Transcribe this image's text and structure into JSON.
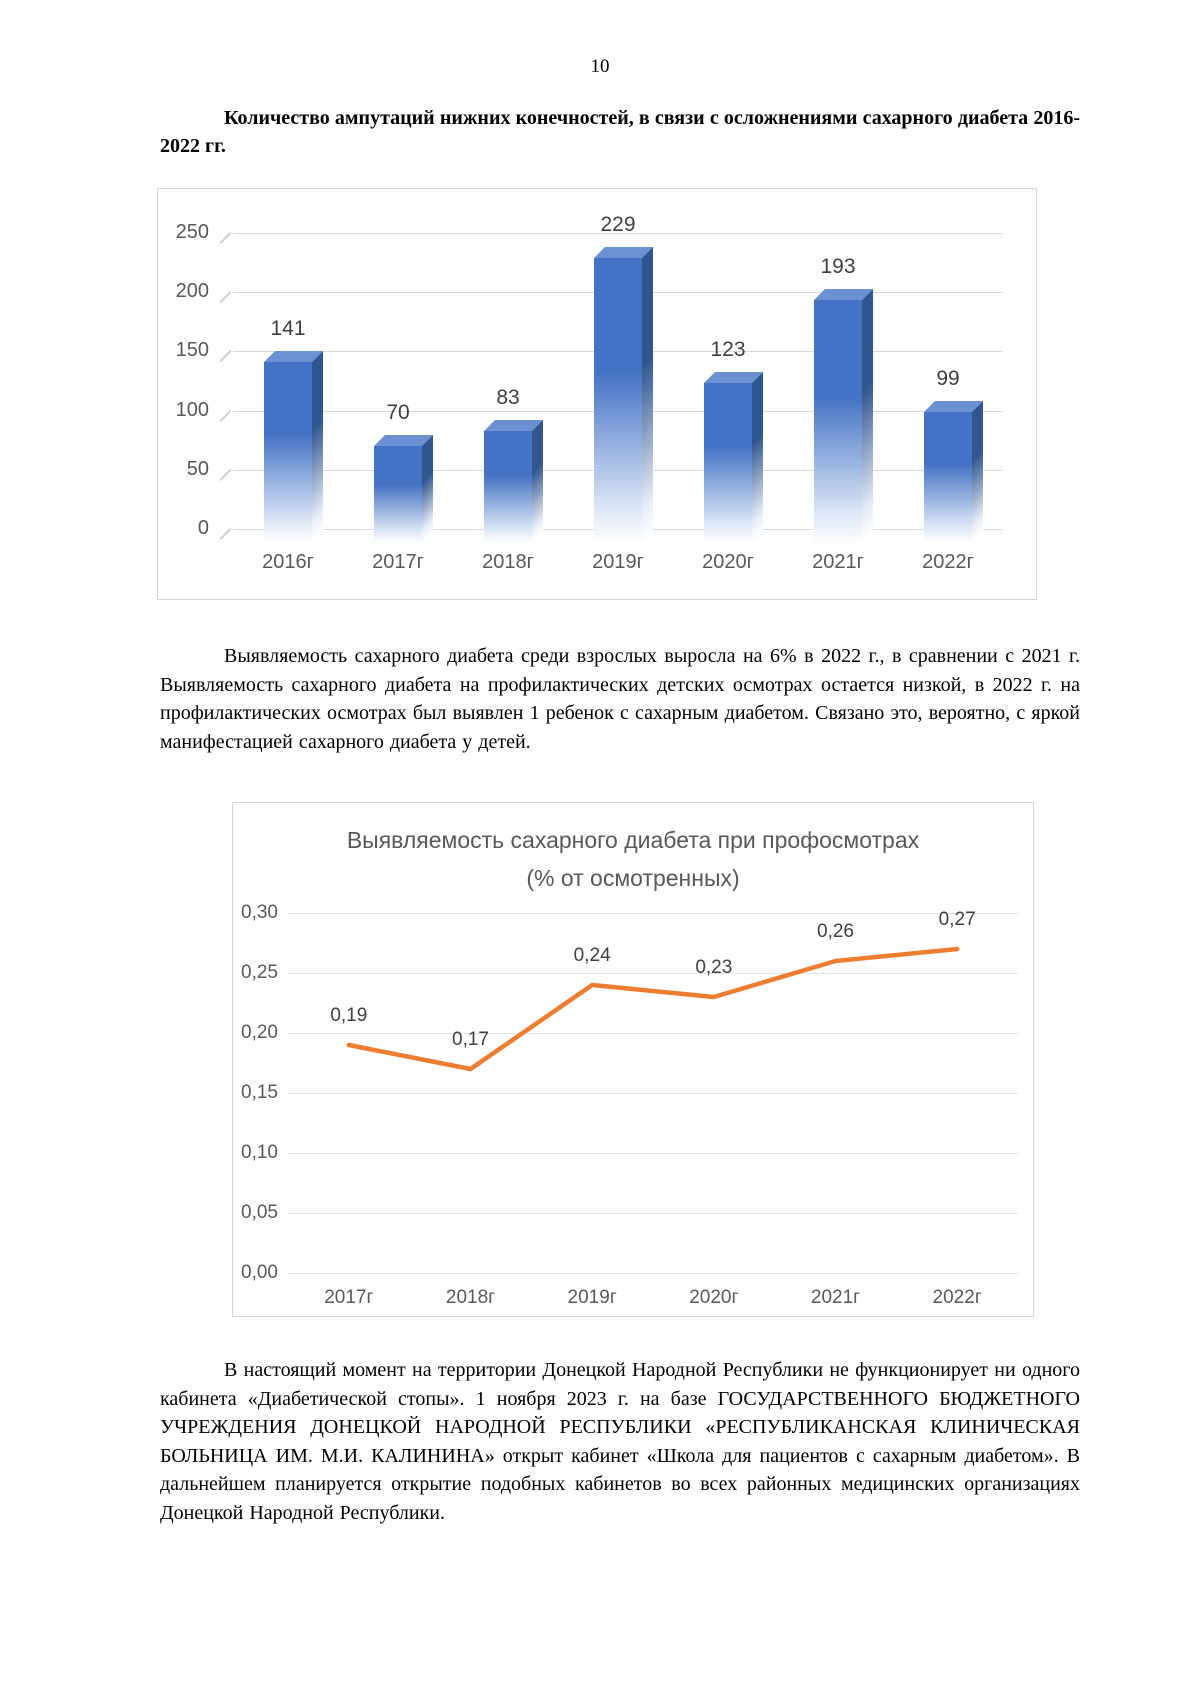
{
  "page": {
    "number": "10"
  },
  "heading": {
    "text": "Количество ампутаций нижних конечностей, в связи с осложнениями сахарного диабета 2016-2022 гг."
  },
  "paragraphs": {
    "p1": "Выявляемость сахарного диабета среди взрослых выросла на 6% в 2022 г., в сравнении с 2021 г. Выявляемость сахарного диабета на профилактических детских осмотрах остается низкой, в 2022 г. на профилактических осмотрах был выявлен 1 ребенок с сахарным диабетом. Связано это, вероятно, с яркой манифестацией сахарного диабета у детей.",
    "p2": "В настоящий момент на территории Донецкой Народной Республики не функционирует ни одного кабинета «Диабетической стопы». 1 ноября 2023 г. на базе ГОСУДАРСТВЕННОГО БЮДЖЕТНОГО УЧРЕЖДЕНИЯ ДОНЕЦКОЙ НАРОДНОЙ РЕСПУБЛИКИ «РЕСПУБЛИКАНСКАЯ КЛИНИЧЕСКАЯ БОЛЬНИЦА ИМ. М.И. КАЛИНИНА» открыт кабинет «Школа для пациентов с сахарным диабетом». В дальнейшем планируется открытие подобных кабинетов во всех районных медицинских организациях Донецкой Народной Республики."
  },
  "chart_data": [
    {
      "type": "bar",
      "style": "3d",
      "title": "",
      "categories": [
        "2016г",
        "2017г",
        "2018г",
        "2019г",
        "2020г",
        "2021г",
        "2022г"
      ],
      "values": [
        141,
        70,
        83,
        229,
        123,
        193,
        99
      ],
      "data_labels": [
        "141",
        "70",
        "83",
        "229",
        "123",
        "193",
        "99"
      ],
      "xlabel": "",
      "ylabel": "",
      "ylim": [
        0,
        250
      ],
      "yticks": [
        0,
        50,
        100,
        150,
        200,
        250
      ],
      "grid": true,
      "legend": "none",
      "bar_color": "#4472C4",
      "bar_side_color": "#31568F",
      "bar_top_color": "#6C91D3",
      "gridline_color": "#D9D9D9",
      "axis_label_color": "#595959",
      "value_label_color": "#404040"
    },
    {
      "type": "line",
      "title": "Выявляемость сахарного диабета при профосмотрах",
      "subtitle": "(% от осмотренных)",
      "categories": [
        "2017г",
        "2018г",
        "2019г",
        "2020г",
        "2021г",
        "2022г"
      ],
      "values": [
        0.19,
        0.17,
        0.24,
        0.23,
        0.26,
        0.27
      ],
      "data_labels": [
        "0,19",
        "0,17",
        "0,24",
        "0,23",
        "0,26",
        "0,27"
      ],
      "xlabel": "",
      "ylabel": "",
      "ylim": [
        0,
        0.3
      ],
      "yticks": [
        "0,00",
        "0,05",
        "0,10",
        "0,15",
        "0,20",
        "0,25",
        "0,30"
      ],
      "grid": true,
      "legend": "none",
      "line_color": "#ED7D31",
      "gridline_color": "#E2E2E2",
      "axis_label_color": "#595959",
      "value_label_color": "#404040",
      "title_color": "#595959"
    }
  ]
}
